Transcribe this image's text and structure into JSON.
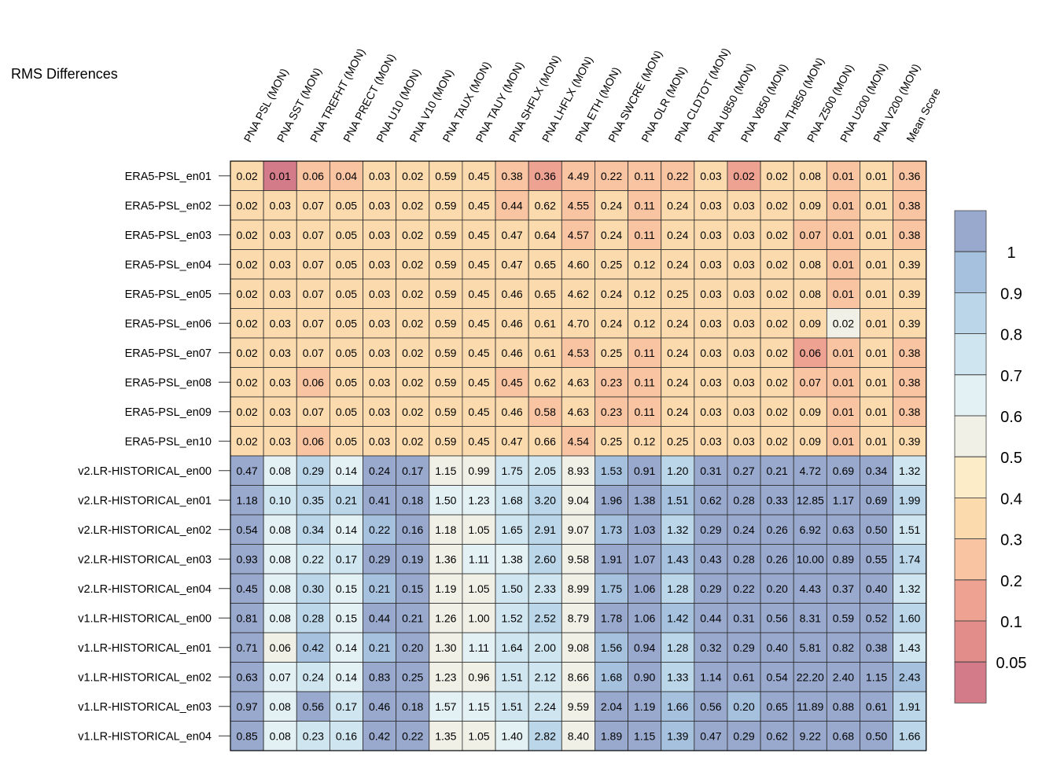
{
  "chart_data": {
    "type": "heatmap",
    "title": "RMS Differences",
    "columns": [
      "PNA PSL (MON)",
      "PNA SST (MON)",
      "PNA TREFHT (MON)",
      "PNA PRECT (MON)",
      "PNA U10 (MON)",
      "PNA V10 (MON)",
      "PNA TAUX (MON)",
      "PNA TAUY (MON)",
      "PNA SHFLX (MON)",
      "PNA LHFLX (MON)",
      "PNA ETH (MON)",
      "PNA SWCRE (MON)",
      "PNA OLR (MON)",
      "PNA CLDTOT (MON)",
      "PNA U850 (MON)",
      "PNA V850 (MON)",
      "PNA TH850 (MON)",
      "PNA Z500 (MON)",
      "PNA U200 (MON)",
      "PNA V200 (MON)",
      "Mean Score"
    ],
    "rows": [
      "ERA5-PSL_en01",
      "ERA5-PSL_en02",
      "ERA5-PSL_en03",
      "ERA5-PSL_en04",
      "ERA5-PSL_en05",
      "ERA5-PSL_en06",
      "ERA5-PSL_en07",
      "ERA5-PSL_en08",
      "ERA5-PSL_en09",
      "ERA5-PSL_en10",
      "v2.LR-HISTORICAL_en00",
      "v2.LR-HISTORICAL_en01",
      "v2.LR-HISTORICAL_en02",
      "v2.LR-HISTORICAL_en03",
      "v2.LR-HISTORICAL_en04",
      "v1.LR-HISTORICAL_en00",
      "v1.LR-HISTORICAL_en01",
      "v1.LR-HISTORICAL_en02",
      "v1.LR-HISTORICAL_en03",
      "v1.LR-HISTORICAL_en04"
    ],
    "values": [
      [
        "0.02",
        "0.01",
        "0.06",
        "0.04",
        "0.03",
        "0.02",
        "0.59",
        "0.45",
        "0.38",
        "0.36",
        "4.49",
        "0.22",
        "0.11",
        "0.22",
        "0.03",
        "0.02",
        "0.02",
        "0.08",
        "0.01",
        "0.01",
        "0.36"
      ],
      [
        "0.02",
        "0.03",
        "0.07",
        "0.05",
        "0.03",
        "0.02",
        "0.59",
        "0.45",
        "0.44",
        "0.62",
        "4.55",
        "0.24",
        "0.11",
        "0.24",
        "0.03",
        "0.03",
        "0.02",
        "0.09",
        "0.01",
        "0.01",
        "0.38"
      ],
      [
        "0.02",
        "0.03",
        "0.07",
        "0.05",
        "0.03",
        "0.02",
        "0.59",
        "0.45",
        "0.47",
        "0.64",
        "4.57",
        "0.24",
        "0.11",
        "0.24",
        "0.03",
        "0.03",
        "0.02",
        "0.07",
        "0.01",
        "0.01",
        "0.38"
      ],
      [
        "0.02",
        "0.03",
        "0.07",
        "0.05",
        "0.03",
        "0.02",
        "0.59",
        "0.45",
        "0.47",
        "0.65",
        "4.60",
        "0.25",
        "0.12",
        "0.24",
        "0.03",
        "0.03",
        "0.02",
        "0.08",
        "0.01",
        "0.01",
        "0.39"
      ],
      [
        "0.02",
        "0.03",
        "0.07",
        "0.05",
        "0.03",
        "0.02",
        "0.59",
        "0.45",
        "0.46",
        "0.65",
        "4.62",
        "0.24",
        "0.12",
        "0.25",
        "0.03",
        "0.03",
        "0.02",
        "0.08",
        "0.01",
        "0.01",
        "0.39"
      ],
      [
        "0.02",
        "0.03",
        "0.07",
        "0.05",
        "0.03",
        "0.02",
        "0.59",
        "0.45",
        "0.46",
        "0.61",
        "4.70",
        "0.24",
        "0.12",
        "0.24",
        "0.03",
        "0.03",
        "0.02",
        "0.09",
        "0.02",
        "0.01",
        "0.39"
      ],
      [
        "0.02",
        "0.03",
        "0.07",
        "0.05",
        "0.03",
        "0.02",
        "0.59",
        "0.45",
        "0.46",
        "0.61",
        "4.53",
        "0.25",
        "0.11",
        "0.24",
        "0.03",
        "0.03",
        "0.02",
        "0.06",
        "0.01",
        "0.01",
        "0.38"
      ],
      [
        "0.02",
        "0.03",
        "0.06",
        "0.05",
        "0.03",
        "0.02",
        "0.59",
        "0.45",
        "0.45",
        "0.62",
        "4.63",
        "0.23",
        "0.11",
        "0.24",
        "0.03",
        "0.03",
        "0.02",
        "0.07",
        "0.01",
        "0.01",
        "0.38"
      ],
      [
        "0.02",
        "0.03",
        "0.07",
        "0.05",
        "0.03",
        "0.02",
        "0.59",
        "0.45",
        "0.46",
        "0.58",
        "4.63",
        "0.23",
        "0.11",
        "0.24",
        "0.03",
        "0.03",
        "0.02",
        "0.09",
        "0.01",
        "0.01",
        "0.38"
      ],
      [
        "0.02",
        "0.03",
        "0.06",
        "0.05",
        "0.03",
        "0.02",
        "0.59",
        "0.45",
        "0.47",
        "0.66",
        "4.54",
        "0.25",
        "0.12",
        "0.25",
        "0.03",
        "0.03",
        "0.02",
        "0.09",
        "0.01",
        "0.01",
        "0.39"
      ],
      [
        "0.47",
        "0.08",
        "0.29",
        "0.14",
        "0.24",
        "0.17",
        "1.15",
        "0.99",
        "1.75",
        "2.05",
        "8.93",
        "1.53",
        "0.91",
        "1.20",
        "0.31",
        "0.27",
        "0.21",
        "4.72",
        "0.69",
        "0.34",
        "1.32"
      ],
      [
        "1.18",
        "0.10",
        "0.35",
        "0.21",
        "0.41",
        "0.18",
        "1.50",
        "1.23",
        "1.68",
        "3.20",
        "9.04",
        "1.96",
        "1.38",
        "1.51",
        "0.62",
        "0.28",
        "0.33",
        "12.85",
        "1.17",
        "0.69",
        "1.99"
      ],
      [
        "0.54",
        "0.08",
        "0.34",
        "0.14",
        "0.22",
        "0.16",
        "1.18",
        "1.05",
        "1.65",
        "2.91",
        "9.07",
        "1.73",
        "1.03",
        "1.32",
        "0.29",
        "0.24",
        "0.26",
        "6.92",
        "0.63",
        "0.50",
        "1.51"
      ],
      [
        "0.93",
        "0.08",
        "0.22",
        "0.17",
        "0.29",
        "0.19",
        "1.36",
        "1.11",
        "1.38",
        "2.60",
        "9.58",
        "1.91",
        "1.07",
        "1.43",
        "0.43",
        "0.28",
        "0.26",
        "10.00",
        "0.89",
        "0.55",
        "1.74"
      ],
      [
        "0.45",
        "0.08",
        "0.30",
        "0.15",
        "0.21",
        "0.15",
        "1.19",
        "1.05",
        "1.50",
        "2.33",
        "8.99",
        "1.75",
        "1.06",
        "1.28",
        "0.29",
        "0.22",
        "0.20",
        "4.43",
        "0.37",
        "0.40",
        "1.32"
      ],
      [
        "0.81",
        "0.08",
        "0.28",
        "0.15",
        "0.44",
        "0.21",
        "1.26",
        "1.00",
        "1.52",
        "2.52",
        "8.79",
        "1.78",
        "1.06",
        "1.42",
        "0.44",
        "0.31",
        "0.56",
        "8.31",
        "0.59",
        "0.52",
        "1.60"
      ],
      [
        "0.71",
        "0.06",
        "0.42",
        "0.14",
        "0.21",
        "0.20",
        "1.30",
        "1.11",
        "1.64",
        "2.00",
        "9.08",
        "1.56",
        "0.94",
        "1.28",
        "0.32",
        "0.29",
        "0.40",
        "5.81",
        "0.82",
        "0.38",
        "1.43"
      ],
      [
        "0.63",
        "0.07",
        "0.24",
        "0.14",
        "0.83",
        "0.25",
        "1.23",
        "0.96",
        "1.51",
        "2.12",
        "8.66",
        "1.68",
        "0.90",
        "1.33",
        "1.14",
        "0.61",
        "0.54",
        "22.20",
        "2.40",
        "1.15",
        "2.43"
      ],
      [
        "0.97",
        "0.08",
        "0.56",
        "0.17",
        "0.46",
        "0.18",
        "1.57",
        "1.15",
        "1.51",
        "2.24",
        "9.59",
        "2.04",
        "1.19",
        "1.66",
        "0.56",
        "0.20",
        "0.65",
        "11.89",
        "0.88",
        "0.61",
        "1.91"
      ],
      [
        "0.85",
        "0.08",
        "0.23",
        "0.16",
        "0.42",
        "0.22",
        "1.35",
        "1.05",
        "1.40",
        "2.82",
        "8.40",
        "1.89",
        "1.15",
        "1.39",
        "0.47",
        "0.29",
        "0.62",
        "9.22",
        "0.68",
        "0.50",
        "1.66"
      ]
    ],
    "legend": {
      "ticks": [
        "1",
        "0.9",
        "0.8",
        "0.7",
        "0.6",
        "0.5",
        "0.4",
        "0.3",
        "0.2",
        "0.1",
        "0.05"
      ],
      "colors": [
        "#98a9cd",
        "#a5c1de",
        "#bad6e8",
        "#cfe5ef",
        "#e3f0f4",
        "#f0f0e6",
        "#fcedc8",
        "#fbdbad",
        "#f8c4a1",
        "#eea292",
        "#e38d8a",
        "#d47b8a"
      ]
    }
  }
}
